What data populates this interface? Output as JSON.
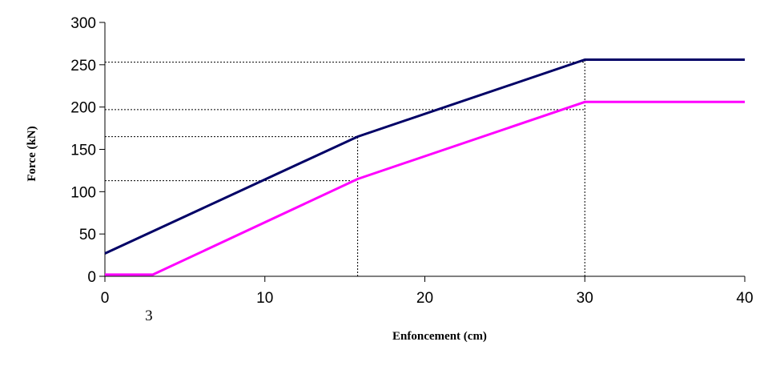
{
  "chart_data": {
    "type": "line",
    "title": "",
    "xlabel": "Enfoncement   (cm)",
    "ylabel": "Force (kN)",
    "xlim": [
      0,
      40
    ],
    "ylim": [
      0,
      300
    ],
    "xticks": [
      0,
      10,
      20,
      30,
      40
    ],
    "yticks": [
      0,
      50,
      100,
      150,
      200,
      250,
      300
    ],
    "grid": false,
    "legend": "none",
    "series": [
      {
        "color": "#000066",
        "x": [
          0,
          15.8,
          30,
          40
        ],
        "y": [
          27,
          165,
          256,
          256
        ]
      },
      {
        "color": "#ff00ff",
        "x": [
          0,
          3,
          15.8,
          30,
          40
        ],
        "y": [
          2,
          2,
          115,
          206,
          206
        ]
      }
    ],
    "reference_lines": [
      {
        "orientation": "horizontal",
        "y": 253,
        "x_to": 30
      },
      {
        "orientation": "horizontal",
        "y": 197,
        "x_to": 30
      },
      {
        "orientation": "horizontal",
        "y": 165,
        "x_to": 15.8
      },
      {
        "orientation": "horizontal",
        "y": 113,
        "x_to": 15.8
      },
      {
        "orientation": "vertical",
        "x": 15.8,
        "y_to": 165
      },
      {
        "orientation": "vertical",
        "x": 30,
        "y_to": 256
      }
    ],
    "annotations": [
      {
        "text": "3",
        "x": 3
      }
    ]
  }
}
